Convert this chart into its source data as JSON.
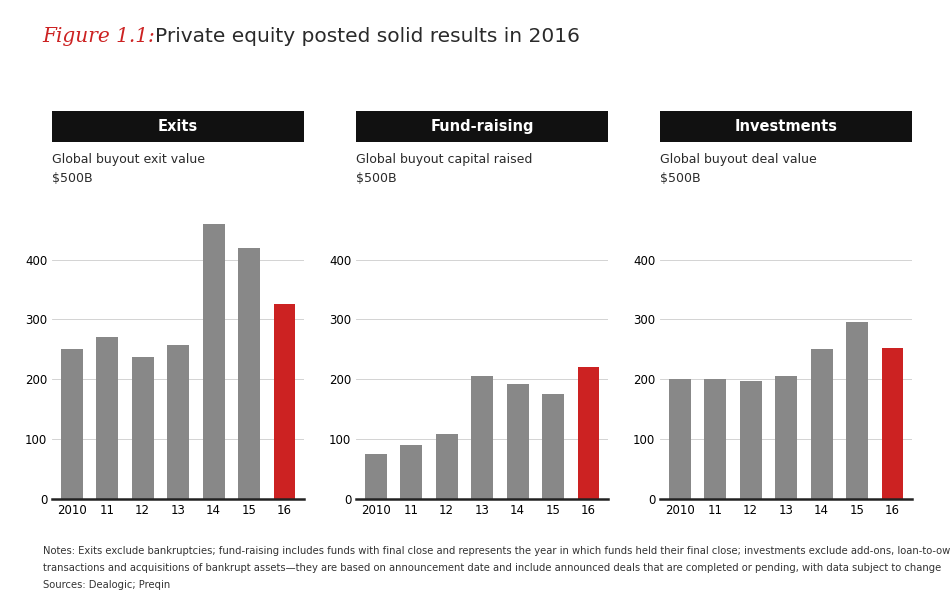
{
  "title_italic": "Figure 1.1: ",
  "title_regular": "Private equity posted solid results in 2016",
  "title_italic_color": "#cc2222",
  "title_regular_color": "#2a2a2a",
  "title_fontsize": 14.5,
  "panels": [
    {
      "header": "Exits",
      "subtitle": "Global buyout exit value",
      "ylabel": "$500B",
      "years": [
        "2010",
        "11",
        "12",
        "13",
        "14",
        "15",
        "16"
      ],
      "values": [
        250,
        270,
        238,
        258,
        460,
        420,
        325
      ],
      "colors": [
        "#888888",
        "#888888",
        "#888888",
        "#888888",
        "#888888",
        "#888888",
        "#cc2222"
      ],
      "ylim": [
        0,
        500
      ],
      "yticks": [
        0,
        100,
        200,
        300,
        400
      ]
    },
    {
      "header": "Fund-raising",
      "subtitle": "Global buyout capital raised",
      "ylabel": "$500B",
      "years": [
        "2010",
        "11",
        "12",
        "13",
        "14",
        "15",
        "16"
      ],
      "values": [
        75,
        90,
        108,
        205,
        193,
        175,
        220
      ],
      "colors": [
        "#888888",
        "#888888",
        "#888888",
        "#888888",
        "#888888",
        "#888888",
        "#cc2222"
      ],
      "ylim": [
        0,
        500
      ],
      "yticks": [
        0,
        100,
        200,
        300,
        400
      ]
    },
    {
      "header": "Investments",
      "subtitle": "Global buyout deal value",
      "ylabel": "$500B",
      "years": [
        "2010",
        "11",
        "12",
        "13",
        "14",
        "15",
        "16"
      ],
      "values": [
        200,
        200,
        198,
        205,
        250,
        295,
        252
      ],
      "colors": [
        "#888888",
        "#888888",
        "#888888",
        "#888888",
        "#888888",
        "#888888",
        "#cc2222"
      ],
      "ylim": [
        0,
        500
      ],
      "yticks": [
        0,
        100,
        200,
        300,
        400
      ]
    }
  ],
  "notes_line1": "Notes: Exits exclude bankruptcies; fund-raising includes funds with final close and represents the year in which funds held their final close; investments exclude add-ons, loan-to-own",
  "notes_line2": "transactions and acquisitions of bankrupt assets—they are based on announcement date and include announced deals that are completed or pending, with data subject to change",
  "sources_line": "Sources: Dealogic; Preqin",
  "header_bg_color": "#111111",
  "header_text_color": "#ffffff",
  "bar_gray": "#888888",
  "bar_red": "#cc2222",
  "background_color": "#ffffff",
  "notes_fontsize": 7.2,
  "tick_fontsize": 8.5,
  "subtitle_fontsize": 9.0,
  "header_fontsize": 10.5
}
